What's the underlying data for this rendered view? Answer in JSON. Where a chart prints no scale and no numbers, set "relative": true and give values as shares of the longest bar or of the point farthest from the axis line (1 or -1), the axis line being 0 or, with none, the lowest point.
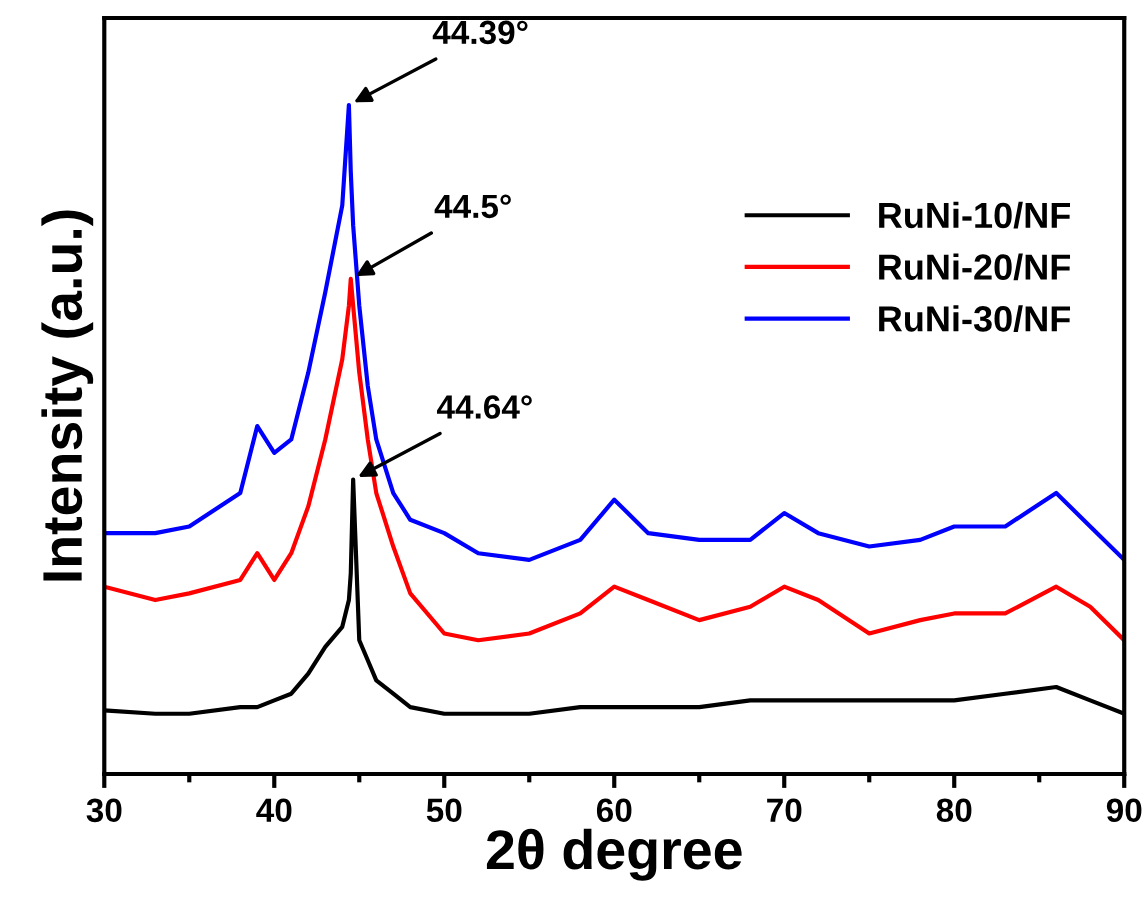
{
  "chart_data": {
    "type": "line",
    "relative": true,
    "xlabel": "2θ degree",
    "ylabel": "Intensity (a.u.)",
    "xlim": [
      30,
      90
    ],
    "xticks": [
      30,
      40,
      50,
      60,
      70,
      80,
      90
    ],
    "grid": false,
    "legend": "top right",
    "tick_labels": "x",
    "line_style": "solid",
    "marker": "none",
    "x": [
      30,
      33,
      35,
      38,
      39,
      40,
      41,
      42,
      43,
      44,
      44.39,
      44.5,
      44.64,
      45,
      45.5,
      46,
      47,
      48,
      50,
      52,
      55,
      58,
      60,
      62,
      65,
      68,
      70,
      72,
      75,
      78,
      80,
      83,
      86,
      88,
      90
    ],
    "series": [
      {
        "name": "RuNi-10/NF",
        "color": "#000000",
        "values": [
          0.095,
          0.09,
          0.09,
          0.1,
          0.1,
          0.11,
          0.12,
          0.15,
          0.19,
          0.22,
          0.26,
          0.3,
          0.44,
          0.2,
          0.17,
          0.14,
          0.12,
          0.1,
          0.09,
          0.09,
          0.09,
          0.1,
          0.1,
          0.1,
          0.1,
          0.11,
          0.11,
          0.11,
          0.11,
          0.11,
          0.11,
          0.12,
          0.13,
          0.11,
          0.09
        ]
      },
      {
        "name": "RuNi-20/NF",
        "color": "#ff0000",
        "values": [
          0.28,
          0.26,
          0.27,
          0.29,
          0.33,
          0.29,
          0.33,
          0.4,
          0.5,
          0.62,
          0.7,
          0.74,
          0.7,
          0.6,
          0.5,
          0.42,
          0.34,
          0.27,
          0.21,
          0.2,
          0.21,
          0.24,
          0.28,
          0.26,
          0.23,
          0.25,
          0.28,
          0.26,
          0.21,
          0.23,
          0.24,
          0.24,
          0.28,
          0.25,
          0.2
        ]
      },
      {
        "name": "RuNi-30/NF",
        "color": "#0000ff",
        "values": [
          0.36,
          0.36,
          0.37,
          0.42,
          0.52,
          0.48,
          0.5,
          0.6,
          0.72,
          0.85,
          1.0,
          0.9,
          0.82,
          0.7,
          0.58,
          0.5,
          0.42,
          0.38,
          0.36,
          0.33,
          0.32,
          0.35,
          0.41,
          0.36,
          0.35,
          0.35,
          0.39,
          0.36,
          0.34,
          0.35,
          0.37,
          0.37,
          0.42,
          0.37,
          0.32
        ]
      }
    ],
    "annotations": [
      {
        "text": "44.39°",
        "x": 44.39,
        "y": 1.0
      },
      {
        "text": "44.5°",
        "x": 44.5,
        "y": 0.74
      },
      {
        "text": "44.64°",
        "x": 44.64,
        "y": 0.44
      }
    ]
  }
}
